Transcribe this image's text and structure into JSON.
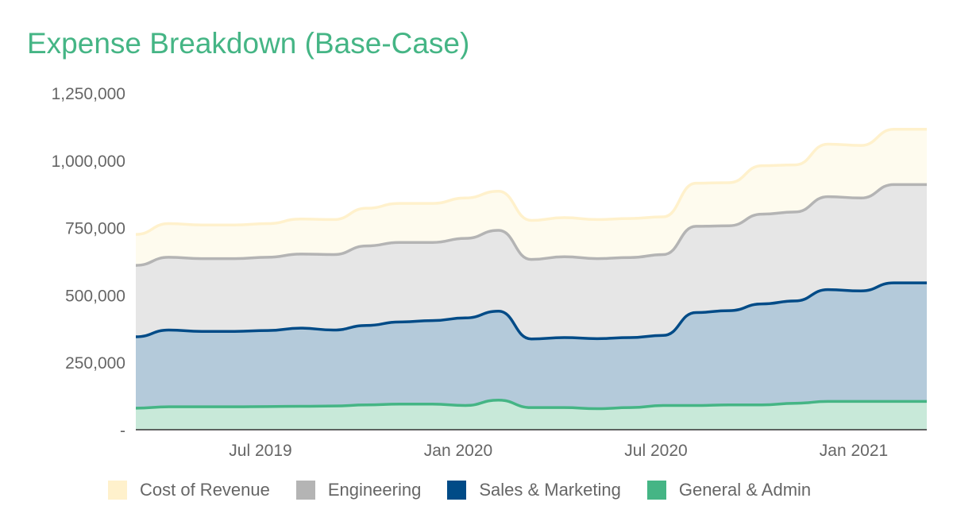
{
  "chart_data": {
    "type": "area",
    "stacked": true,
    "title": "Expense Breakdown (Base-Case)",
    "x": [
      "2019-03",
      "2019-04",
      "2019-05",
      "2019-06",
      "2019-07",
      "2019-08",
      "2019-09",
      "2019-10",
      "2019-11",
      "2019-12",
      "2020-01",
      "2020-02",
      "2020-03",
      "2020-04",
      "2020-05",
      "2020-06",
      "2020-07",
      "2020-08",
      "2020-09",
      "2020-10",
      "2020-11",
      "2020-12",
      "2021-01",
      "2021-02",
      "2021-03"
    ],
    "x_tick_labels": [
      "Jul 2019",
      "Jan 2020",
      "Jul 2020",
      "Jan 2021"
    ],
    "x_tick_index": [
      4,
      10,
      16,
      22
    ],
    "y_ticks": [
      0,
      250000,
      500000,
      750000,
      1000000,
      1250000
    ],
    "y_tick_labels": [
      "-",
      "250,000",
      "500,000",
      "750,000",
      "1,000,000",
      "1,250,000"
    ],
    "ylim": [
      0,
      1250000
    ],
    "grid": false,
    "legend_position": "bottom",
    "series": [
      {
        "name": "General & Admin",
        "color": "#45b585",
        "fill": "#c8e9d9",
        "values": [
          80000,
          85000,
          85000,
          85000,
          86000,
          87000,
          88000,
          92000,
          95000,
          95000,
          90000,
          110000,
          82000,
          82000,
          78000,
          82000,
          90000,
          90000,
          92000,
          92000,
          98000,
          105000,
          105000,
          105000,
          105000
        ]
      },
      {
        "name": "Sales & Marketing",
        "color": "#004b87",
        "fill": "#b4cada",
        "values": [
          265000,
          285000,
          280000,
          280000,
          282000,
          290000,
          282000,
          295000,
          305000,
          310000,
          325000,
          330000,
          255000,
          260000,
          260000,
          260000,
          260000,
          345000,
          350000,
          375000,
          380000,
          415000,
          410000,
          440000,
          440000
        ]
      },
      {
        "name": "Engineering",
        "color": "#b4b4b4",
        "fill": "#e6e6e6",
        "values": [
          265000,
          270000,
          270000,
          270000,
          272000,
          275000,
          280000,
          295000,
          295000,
          290000,
          295000,
          300000,
          295000,
          300000,
          297000,
          297000,
          300000,
          320000,
          315000,
          333000,
          330000,
          345000,
          345000,
          365000,
          365000
        ]
      },
      {
        "name": "Cost of Revenue",
        "color": "#fff1cc",
        "fill": "#fefbee",
        "values": [
          115000,
          125000,
          125000,
          125000,
          125000,
          130000,
          130000,
          140000,
          145000,
          145000,
          150000,
          145000,
          145000,
          145000,
          145000,
          145000,
          140000,
          160000,
          160000,
          180000,
          175000,
          195000,
          195000,
          205000,
          205000
        ]
      }
    ],
    "legend_order": [
      "Cost of Revenue",
      "Engineering",
      "Sales & Marketing",
      "General & Admin"
    ]
  }
}
